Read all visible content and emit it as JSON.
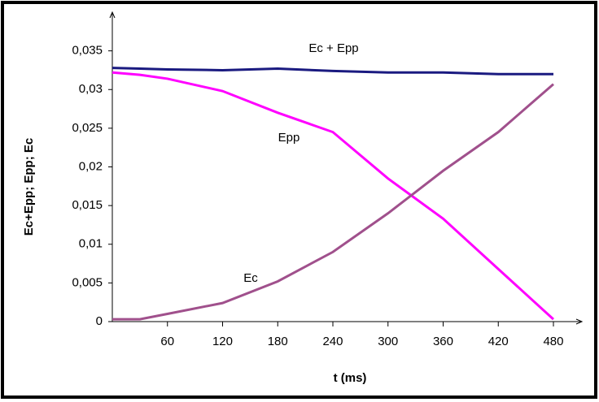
{
  "chart_data": {
    "type": "line",
    "x_label": "t (ms)",
    "y_label": "Ec+Epp; Epp; Ec",
    "x": [
      0,
      30,
      60,
      120,
      180,
      240,
      300,
      360,
      420,
      480
    ],
    "series": [
      {
        "name": "Ec + Epp",
        "color": "#1a1a80",
        "values": [
          0.0328,
          0.0327,
          0.0326,
          0.0325,
          0.0327,
          0.0324,
          0.0322,
          0.0322,
          0.032,
          0.032
        ]
      },
      {
        "name": "Epp",
        "color": "#ff00ff",
        "values": [
          0.0322,
          0.0319,
          0.0314,
          0.0298,
          0.027,
          0.0245,
          0.0185,
          0.0133,
          0.0068,
          0.0003
        ]
      },
      {
        "name": "Ec",
        "color": "#a0508c",
        "values": [
          0.0003,
          0.0003,
          0.001,
          0.0024,
          0.0052,
          0.009,
          0.014,
          0.0195,
          0.0245,
          0.0307
        ]
      }
    ],
    "xlim": [
      0,
      511
    ],
    "ylim": [
      0,
      0.04
    ],
    "xticks": [
      60,
      120,
      180,
      240,
      300,
      360,
      420,
      480
    ],
    "yticks": [
      0,
      {
        "value": 0.005,
        "label": "0,005"
      },
      {
        "value": 0.01,
        "label": "0,01"
      },
      {
        "value": 0.015,
        "label": "0,015"
      },
      {
        "value": 0.02,
        "label": "0,02"
      },
      {
        "value": 0.025,
        "label": "0,025"
      },
      {
        "value": 0.03,
        "label": "0,03"
      },
      {
        "value": 0.035,
        "label": "0,035"
      }
    ]
  }
}
